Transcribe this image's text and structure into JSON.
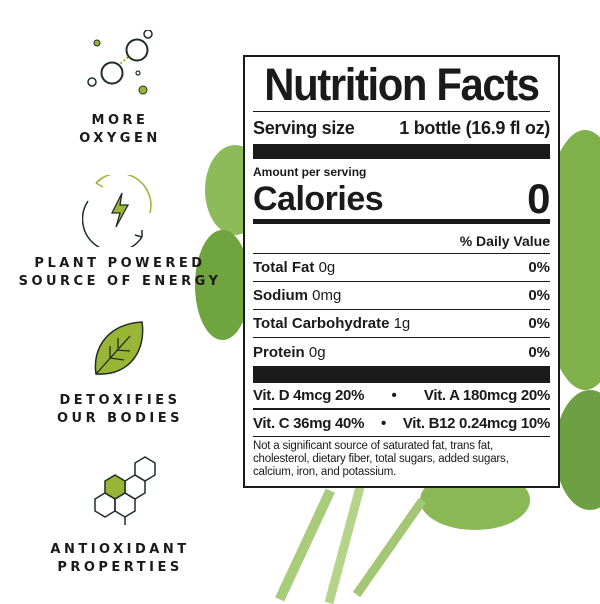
{
  "features": [
    {
      "icon": "bubbles-icon",
      "line1": "MORE",
      "line2": "OXYGEN"
    },
    {
      "icon": "energy-cycle-icon",
      "line1": "PLANT POWERED",
      "line2": "SOURCE OF ENERGY"
    },
    {
      "icon": "leaf-icon",
      "line1": "DETOXIFIES",
      "line2": "OUR BODIES"
    },
    {
      "icon": "molecule-icon",
      "line1": "ANTIOXIDANT",
      "line2": "PROPERTIES"
    }
  ],
  "colors": {
    "accent": "#9ab536",
    "dark": "#1f2d25",
    "kale": "#7fae4a"
  },
  "label": {
    "title": "Nutrition Facts",
    "serving_label": "Serving size",
    "serving_value": "1 bottle (16.9 fl oz)",
    "amount_per_serving": "Amount per serving",
    "calories_label": "Calories",
    "calories_value": "0",
    "daily_value_header": "% Daily Value",
    "nutrients": [
      {
        "name": "Total Fat",
        "amount": "0g",
        "dv": "0%"
      },
      {
        "name": "Sodium",
        "amount": "0mg",
        "dv": "0%"
      },
      {
        "name": "Total Carbohydrate",
        "amount": "1g",
        "dv": "0%"
      },
      {
        "name": "Protein",
        "amount": "0g",
        "dv": "0%"
      }
    ],
    "vitamins": [
      {
        "left": "Vit. D 4mcg 20%",
        "right": "Vit. A 180mcg 20%"
      },
      {
        "left": "Vit. C 36mg 40%",
        "right": "Vit. B12 0.24mcg 10%"
      }
    ],
    "bullet": "•",
    "footnote": "Not a significant source of saturated fat, trans fat, cholesterol, dietary fiber, total sugars, added sugars, calcium, iron, and potassium."
  }
}
